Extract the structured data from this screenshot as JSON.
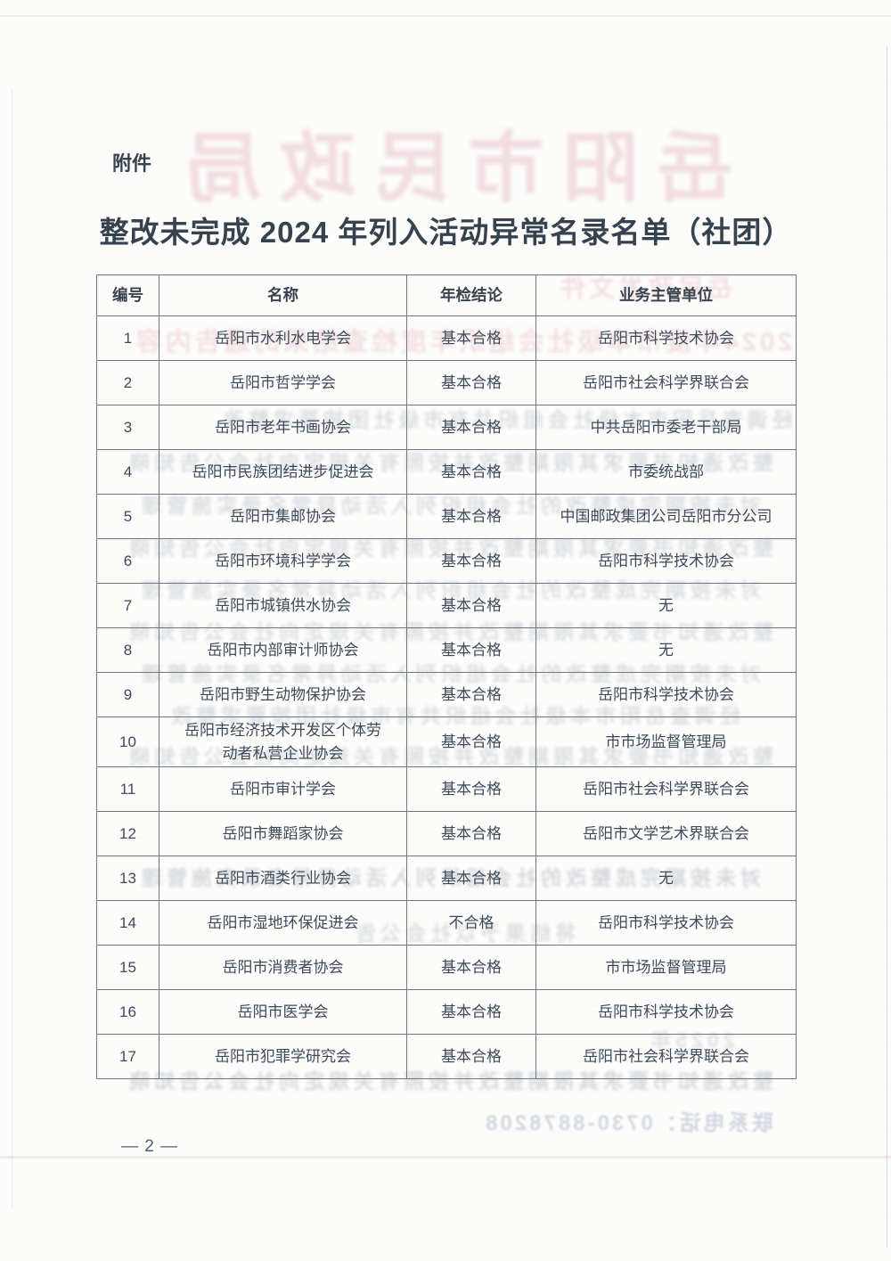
{
  "document": {
    "attachment_label": "附件",
    "title": "整改未完成 2024 年列入活动异常名录名单（社团）",
    "page_number": "— 2 —"
  },
  "table": {
    "headers": [
      "编号",
      "名称",
      "年检结论",
      "业务主管单位"
    ],
    "rows": [
      [
        "1",
        "岳阳市水利水电学会",
        "基本合格",
        "岳阳市科学技术协会"
      ],
      [
        "2",
        "岳阳市哲学学会",
        "基本合格",
        "岳阳市社会科学界联合会"
      ],
      [
        "3",
        "岳阳市老年书画协会",
        "基本合格",
        "中共岳阳市委老干部局"
      ],
      [
        "4",
        "岳阳市民族团结进步促进会",
        "基本合格",
        "市委统战部"
      ],
      [
        "5",
        "岳阳市集邮协会",
        "基本合格",
        "中国邮政集团公司岳阳市分公司"
      ],
      [
        "6",
        "岳阳市环境科学学会",
        "基本合格",
        "岳阳市科学技术协会"
      ],
      [
        "7",
        "岳阳市城镇供水协会",
        "基本合格",
        "无"
      ],
      [
        "8",
        "岳阳市内部审计师协会",
        "基本合格",
        "无"
      ],
      [
        "9",
        "岳阳市野生动物保护协会",
        "基本合格",
        "岳阳市科学技术协会"
      ],
      [
        "10",
        "岳阳市经济技术开发区个体劳动者私营企业协会",
        "基本合格",
        "市市场监督管理局"
      ],
      [
        "11",
        "岳阳市审计学会",
        "基本合格",
        "岳阳市社会科学界联合会"
      ],
      [
        "12",
        "岳阳市舞蹈家协会",
        "基本合格",
        "岳阳市文学艺术界联合会"
      ],
      [
        "13",
        "岳阳市酒类行业协会",
        "基本合格",
        "无"
      ],
      [
        "14",
        "岳阳市湿地环保促进会",
        "不合格",
        "岳阳市科学技术协会"
      ],
      [
        "15",
        "岳阳市消费者协会",
        "基本合格",
        "市市场监督管理局"
      ],
      [
        "16",
        "岳阳市医学会",
        "基本合格",
        "岳阳市科学技术协会"
      ],
      [
        "17",
        "岳阳市犯罪学研究会",
        "基本合格",
        "岳阳市社会科学界联合会"
      ]
    ]
  },
  "bleed_through": {
    "red_letterhead": "岳阳市民政局",
    "pink_line_a": "岳民政发文件",
    "pink_line_b": "2024年度市本级社会组织年度检查结果的通告内容",
    "gray_line_a": "经调查岳阳市本级社会组织共有市级社团按要求整改",
    "gray_line_b": "整改通知书要求其限期整改并按照有关规定向社会公告知晓",
    "gray_line_c": "对未按期完成整改的社会组织列入活动异常名录实施管理",
    "gray_line_d": "将结果予以社会公告",
    "gray_line_year": "2025年",
    "phone_line": "联系电话：0730-8878208"
  },
  "colors": {
    "page_background": "#fcfcfb",
    "table_border": "#6e7680",
    "body_text": "#3e4a59",
    "bleed_pink": "#d0707e",
    "bleed_gray": "#5c6a7e"
  }
}
